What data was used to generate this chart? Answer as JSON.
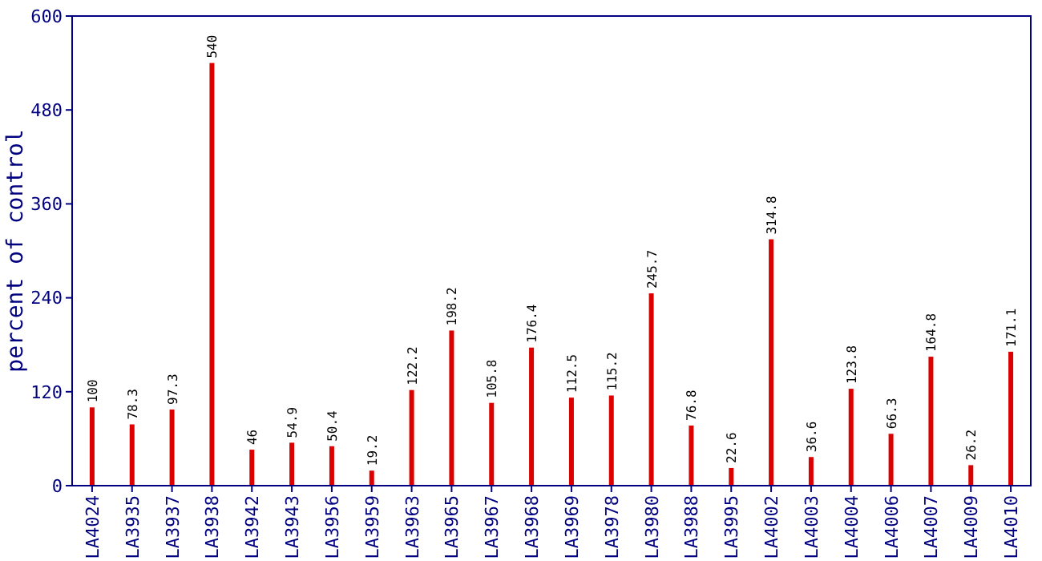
{
  "chart_data": {
    "type": "bar",
    "ylabel": "percent of control",
    "categories": [
      "LA4024",
      "LA3935",
      "LA3937",
      "LA3938",
      "LA3942",
      "LA3943",
      "LA3956",
      "LA3959",
      "LA3963",
      "LA3965",
      "LA3967",
      "LA3968",
      "LA3969",
      "LA3978",
      "LA3980",
      "LA3988",
      "LA3995",
      "LA4002",
      "LA4003",
      "LA4004",
      "LA4006",
      "LA4007",
      "LA4009",
      "LA4010"
    ],
    "values": [
      100,
      78.3,
      97.3,
      540,
      46,
      54.9,
      50.4,
      19.2,
      122.2,
      198.2,
      105.8,
      176.4,
      112.5,
      115.2,
      245.7,
      76.8,
      22.6,
      314.8,
      36.6,
      123.8,
      66.3,
      164.8,
      26.2,
      171.1
    ],
    "color": "#dd0000",
    "ylim": [
      0,
      600
    ],
    "yticks": [
      0,
      120,
      240,
      360,
      480,
      600
    ],
    "data_labels": true,
    "grid": false
  }
}
